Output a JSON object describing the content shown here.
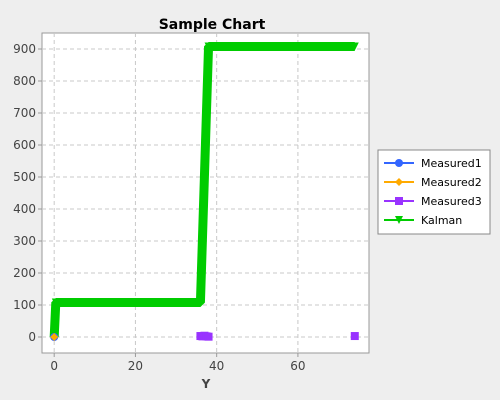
{
  "chart_data": {
    "type": "line",
    "title": "Sample Chart",
    "xlabel": "Y",
    "ylabel": "",
    "xlim": [
      -3,
      77.5
    ],
    "ylim": [
      -50,
      950
    ],
    "x_ticks": [
      0,
      20,
      40,
      60
    ],
    "y_ticks": [
      0,
      100,
      200,
      300,
      400,
      500,
      600,
      700,
      800,
      900
    ],
    "grid": true,
    "legend_position": "right",
    "series": [
      {
        "name": "Measured1",
        "color": "#3366ff",
        "marker": "circle",
        "points": [
          [
            0,
            0
          ]
        ]
      },
      {
        "name": "Measured2",
        "color": "#ffaa00",
        "marker": "diamond",
        "points": [
          [
            0,
            0
          ]
        ]
      },
      {
        "name": "Measured3",
        "color": "#9933ff",
        "marker": "square",
        "points": [
          [
            36,
            3
          ],
          [
            36.5,
            2
          ],
          [
            37,
            4
          ],
          [
            37.5,
            2
          ],
          [
            38,
            1
          ],
          [
            74,
            3
          ]
        ]
      },
      {
        "name": "Kalman",
        "color": "#00cc00",
        "marker": "triangle-down",
        "points": [
          [
            0,
            0
          ],
          [
            0.4,
            108
          ],
          [
            36,
            108
          ],
          [
            38,
            908
          ],
          [
            74,
            908
          ]
        ]
      }
    ]
  }
}
